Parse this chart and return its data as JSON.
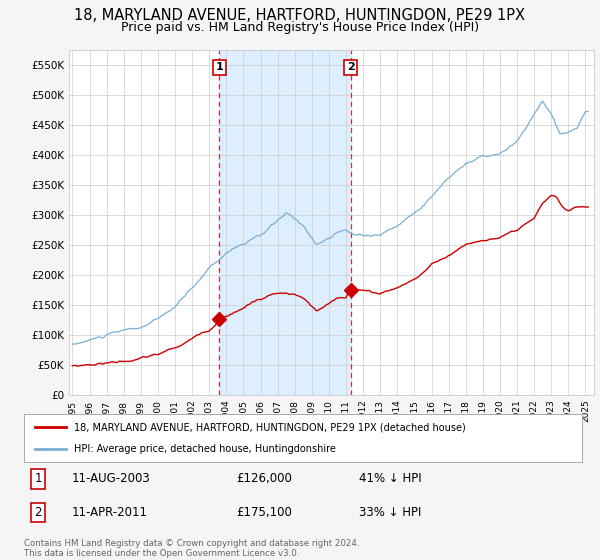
{
  "title": "18, MARYLAND AVENUE, HARTFORD, HUNTINGDON, PE29 1PX",
  "subtitle": "Price paid vs. HM Land Registry's House Price Index (HPI)",
  "title_fontsize": 10.5,
  "subtitle_fontsize": 9,
  "bg_color": "#f5f5f5",
  "plot_bg_color": "#ffffff",
  "grid_color": "#cccccc",
  "hpi_color": "#7ab0d4",
  "price_color": "#cc0000",
  "shade_color": "#ddeeff",
  "purchase1_date_num": 2003.6,
  "purchase1_price": 126000,
  "purchase2_date_num": 2011.27,
  "purchase2_price": 175100,
  "ylim": [
    0,
    575000
  ],
  "xlim": [
    1994.8,
    2025.5
  ],
  "yticks": [
    0,
    50000,
    100000,
    150000,
    200000,
    250000,
    300000,
    350000,
    400000,
    450000,
    500000,
    550000
  ],
  "ytick_labels": [
    "£0",
    "£50K",
    "£100K",
    "£150K",
    "£200K",
    "£250K",
    "£300K",
    "£350K",
    "£400K",
    "£450K",
    "£500K",
    "£550K"
  ],
  "xticks": [
    1995,
    1996,
    1997,
    1998,
    1999,
    2000,
    2001,
    2002,
    2003,
    2004,
    2005,
    2006,
    2007,
    2008,
    2009,
    2010,
    2011,
    2012,
    2013,
    2014,
    2015,
    2016,
    2017,
    2018,
    2019,
    2020,
    2021,
    2022,
    2023,
    2024,
    2025
  ],
  "legend_entry1": "18, MARYLAND AVENUE, HARTFORD, HUNTINGDON, PE29 1PX (detached house)",
  "legend_entry2": "HPI: Average price, detached house, Huntingdonshire",
  "footer_text": "Contains HM Land Registry data © Crown copyright and database right 2024.\nThis data is licensed under the Open Government Licence v3.0.",
  "marker_size": 7
}
